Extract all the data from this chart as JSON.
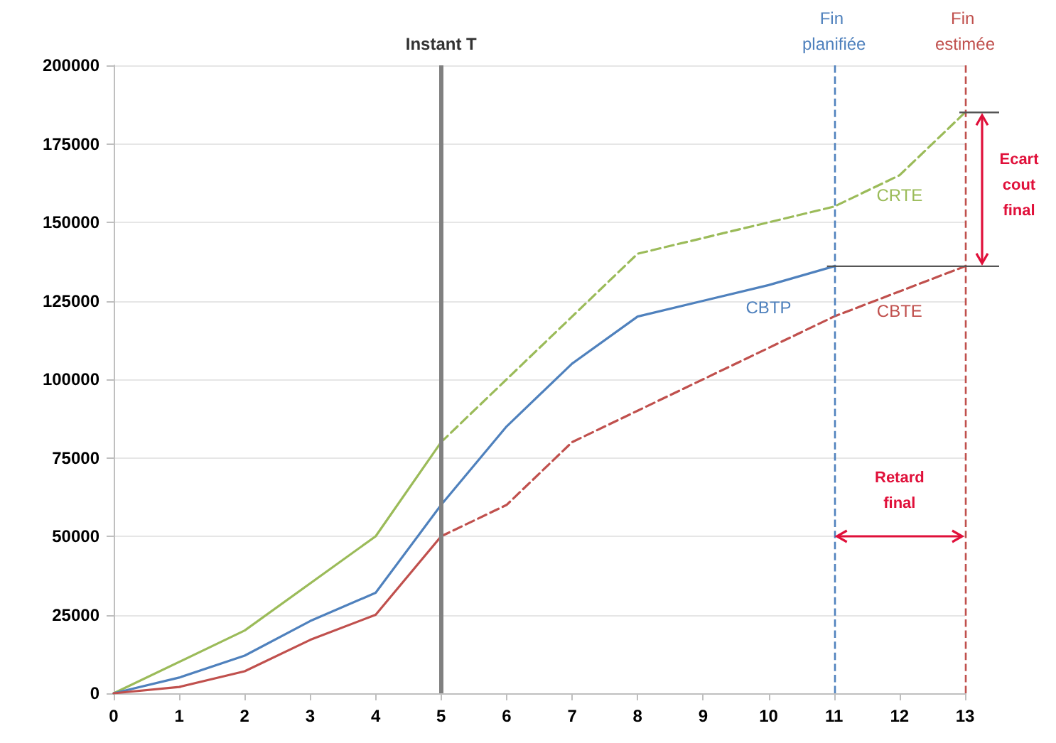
{
  "chart_data": {
    "type": "line",
    "xlim": [
      0,
      13
    ],
    "xticks": [
      0,
      1,
      2,
      3,
      4,
      5,
      6,
      7,
      8,
      9,
      10,
      11,
      12,
      13
    ],
    "ylim": [
      0,
      200000
    ],
    "yticks": [
      0,
      25000,
      50000,
      75000,
      100000,
      125000,
      150000,
      175000,
      200000
    ],
    "grid": "y",
    "legend": false,
    "marker": "none",
    "series": [
      {
        "color": "#9bbb59",
        "line_style": "solid",
        "x": [
          0,
          2,
          4,
          5
        ],
        "values": [
          0,
          20000,
          50000,
          80000
        ]
      },
      {
        "name": "CRTE",
        "color": "#9bbb59",
        "line_style": "dashed",
        "x": [
          5,
          6,
          7,
          8,
          9,
          10,
          11,
          12,
          13
        ],
        "values": [
          80000,
          100000,
          120000,
          140000,
          145000,
          150000,
          155000,
          165000,
          185000
        ]
      },
      {
        "name": "CBTP",
        "color": "#4f81bd",
        "line_style": "solid",
        "x": [
          0,
          1,
          2,
          3,
          4,
          5,
          6,
          7,
          8,
          9,
          10,
          11
        ],
        "values": [
          0,
          5000,
          12000,
          23000,
          32000,
          60000,
          85000,
          105000,
          120000,
          125000,
          130000,
          136000
        ]
      },
      {
        "color": "#c0504d",
        "line_style": "solid",
        "x": [
          0,
          1,
          2,
          3,
          4,
          5
        ],
        "values": [
          0,
          2000,
          7000,
          17000,
          25000,
          50000
        ]
      },
      {
        "name": "CBTE",
        "color": "#c0504d",
        "line_style": "dashed",
        "x": [
          5,
          6,
          7,
          8,
          9,
          10,
          11,
          12,
          13
        ],
        "values": [
          50000,
          60000,
          80000,
          90000,
          100000,
          110000,
          120000,
          128000,
          136000
        ]
      }
    ],
    "ref_lines": [
      {
        "axis": "x",
        "value": 5,
        "label": "Instant T",
        "color": "#808080",
        "line_style": "solid"
      },
      {
        "axis": "x",
        "value": 11,
        "label": "Fin planifiée",
        "color": "#4f81bd",
        "line_style": "dashed"
      },
      {
        "axis": "x",
        "value": 13,
        "label": "Fin estimée",
        "color": "#c0504d",
        "line_style": "dashed"
      }
    ],
    "annotations": [
      "Ecart cout final",
      "Retard final"
    ]
  }
}
